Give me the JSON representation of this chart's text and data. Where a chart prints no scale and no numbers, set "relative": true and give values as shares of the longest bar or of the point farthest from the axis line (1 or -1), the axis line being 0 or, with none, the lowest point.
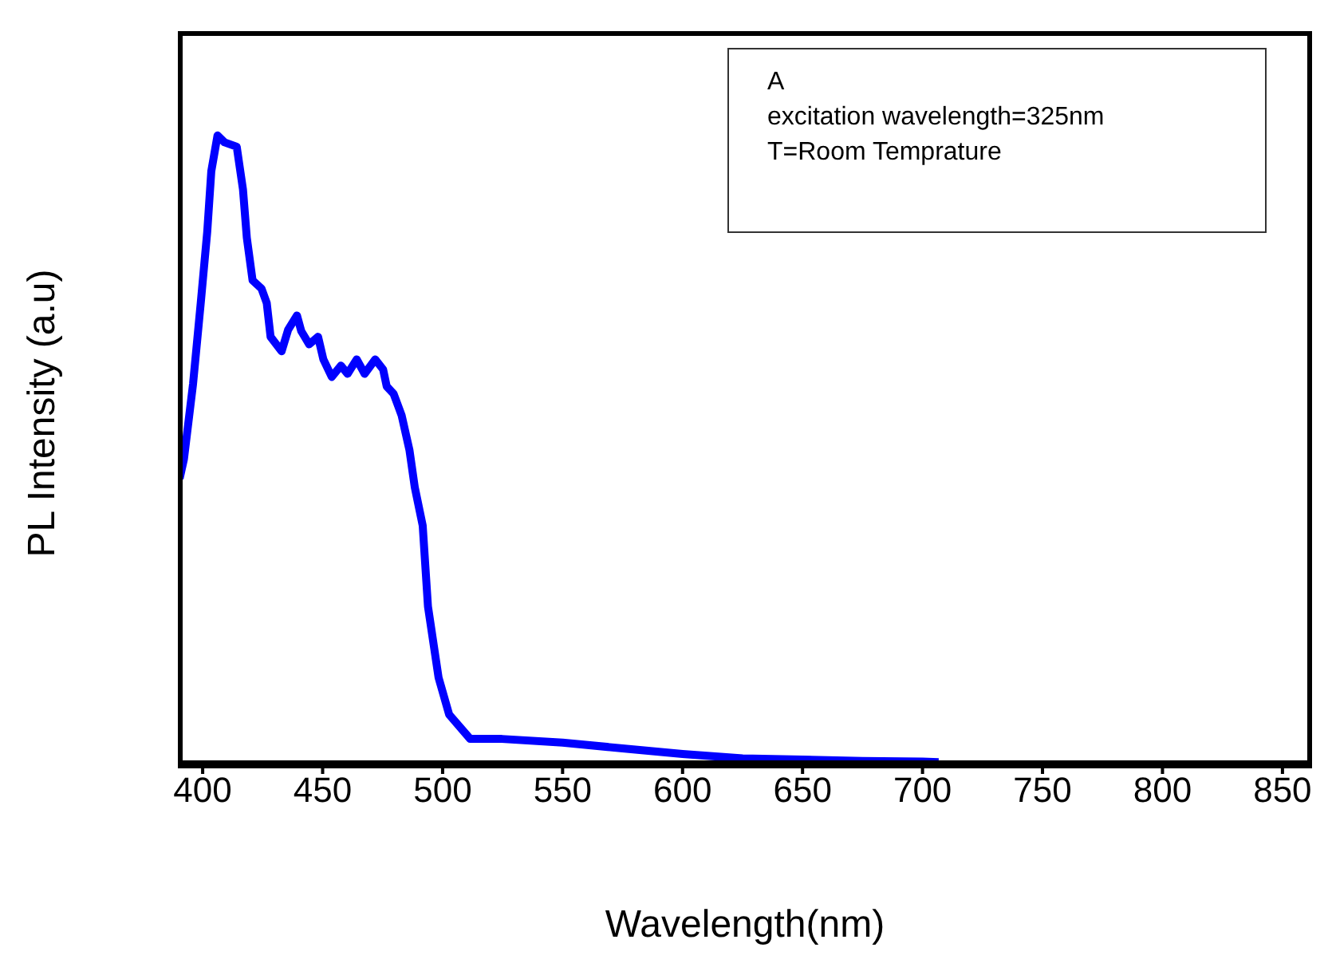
{
  "chart_data": {
    "type": "line",
    "xlabel": "Wavelength(nm)",
    "ylabel": "PL Intensity (a.u)",
    "relative": true,
    "annotations": [
      "A\nexcitation wavelength=325nm\nT=Room Temprature"
    ],
    "xlim": [
      390,
      862
    ],
    "xticks": [
      400,
      450,
      500,
      550,
      600,
      650,
      700,
      750,
      800,
      850
    ],
    "marker": "none",
    "line_style": "solid",
    "series": [
      {
        "color": "#0000ff",
        "x": [
          390.4,
          392.2,
          396,
          399.2,
          401.9,
          403.6,
          406.2,
          409.1,
          414.2,
          416.8,
          418.4,
          420.8,
          424.5,
          426.7,
          428.3,
          432.9,
          435.6,
          439.3,
          441.1,
          444.4,
          448.1,
          450.3,
          453.8,
          457.6,
          460.4,
          464.2,
          467.5,
          471.9,
          475.2,
          476.7,
          479.6,
          482.9,
          486.2,
          488.4,
          491.7,
          493.9,
          498.3,
          502.7,
          511.5,
          524.7,
          550,
          575,
          600,
          625,
          650,
          675,
          700,
          706.7
        ],
        "values": [
          0.453,
          0.484,
          0.604,
          0.733,
          0.846,
          0.943,
          1.0,
          0.989,
          0.982,
          0.914,
          0.837,
          0.769,
          0.756,
          0.733,
          0.679,
          0.656,
          0.69,
          0.713,
          0.688,
          0.667,
          0.679,
          0.643,
          0.615,
          0.633,
          0.62,
          0.643,
          0.62,
          0.643,
          0.627,
          0.6,
          0.588,
          0.554,
          0.498,
          0.439,
          0.378,
          0.249,
          0.136,
          0.077,
          0.038,
          0.038,
          0.032,
          0.023,
          0.014,
          0.007,
          0.005,
          0.003,
          0.002,
          0.001
        ]
      }
    ]
  }
}
